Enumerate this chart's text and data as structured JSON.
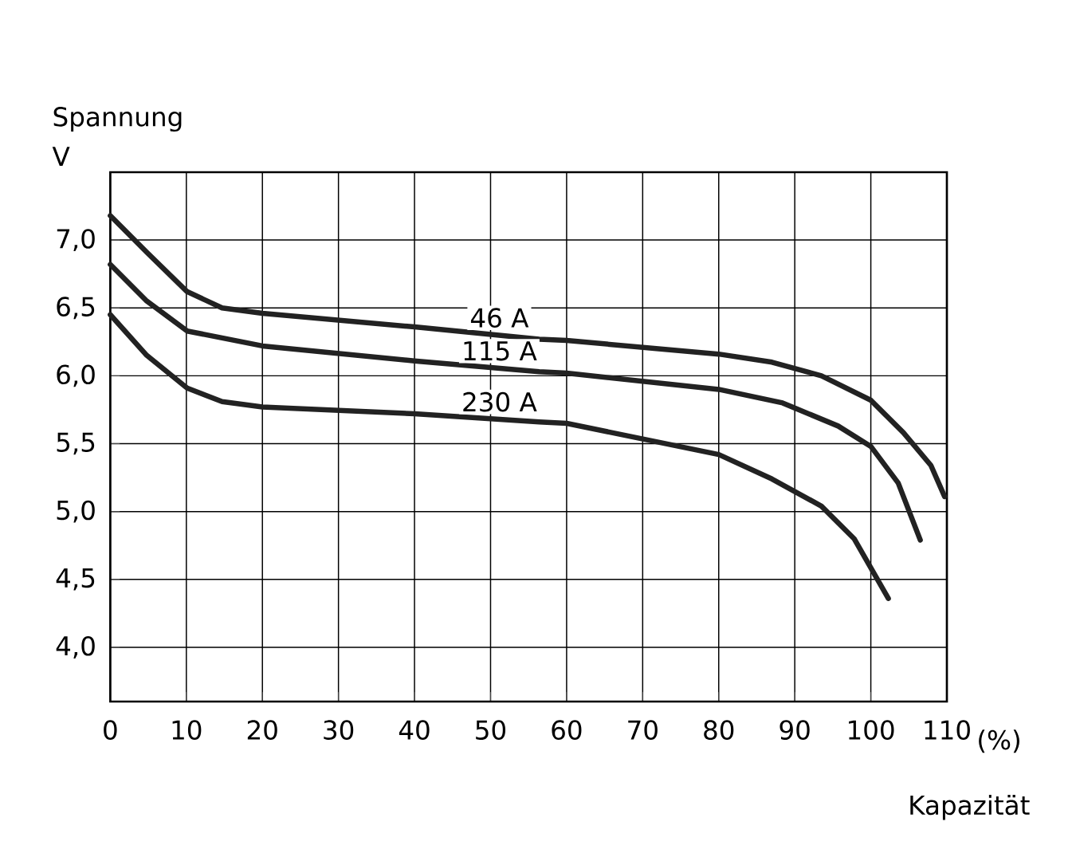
{
  "chart_data": {
    "type": "line",
    "xlabel": "Kapazität",
    "ylabel": "Spannung",
    "annotations": [
      "V",
      "(%)"
    ],
    "xlim": [
      0,
      110
    ],
    "ylim": [
      3.6,
      7.5
    ],
    "xticks": [
      0,
      10,
      20,
      30,
      40,
      50,
      60,
      70,
      80,
      90,
      100,
      110
    ],
    "yticks": [
      {
        "value": 4.0,
        "label": "4,0"
      },
      {
        "value": 4.5,
        "label": "4,5"
      },
      {
        "value": 5.0,
        "label": "5,0"
      },
      {
        "value": 5.5,
        "label": "5,5"
      },
      {
        "value": 6.0,
        "label": "6,0"
      },
      {
        "value": 6.5,
        "label": "6,5"
      },
      {
        "value": 7.0,
        "label": "7,0"
      }
    ],
    "grid": true,
    "line_style": "solid",
    "series": [
      {
        "name": "46 A",
        "color": "#222222",
        "x": [
          0,
          4.8,
          10.1,
          14.7,
          20,
          40,
          56.4,
          60,
          80,
          87,
          93.5,
          100,
          104.3,
          107.9,
          109.7
        ],
        "values": [
          7.18,
          6.91,
          6.62,
          6.5,
          6.46,
          6.36,
          6.27,
          6.26,
          6.16,
          6.1,
          6.0,
          5.82,
          5.58,
          5.34,
          5.11
        ]
      },
      {
        "name": "115 A",
        "color": "#222222",
        "x": [
          0,
          4.8,
          10.1,
          20,
          40,
          56.4,
          60,
          80,
          88.4,
          95.7,
          100,
          103.6,
          106.5
        ],
        "values": [
          6.82,
          6.55,
          6.33,
          6.22,
          6.11,
          6.03,
          6.02,
          5.9,
          5.8,
          5.63,
          5.48,
          5.21,
          4.79
        ]
      },
      {
        "name": "230 A",
        "color": "#222222",
        "x": [
          0,
          4.8,
          10.1,
          14.7,
          20,
          40,
          56.4,
          60,
          80,
          87,
          93.5,
          97.8,
          102.3
        ],
        "values": [
          6.45,
          6.15,
          5.91,
          5.81,
          5.77,
          5.72,
          5.66,
          5.65,
          5.42,
          5.24,
          5.04,
          4.8,
          4.36
        ]
      }
    ]
  }
}
